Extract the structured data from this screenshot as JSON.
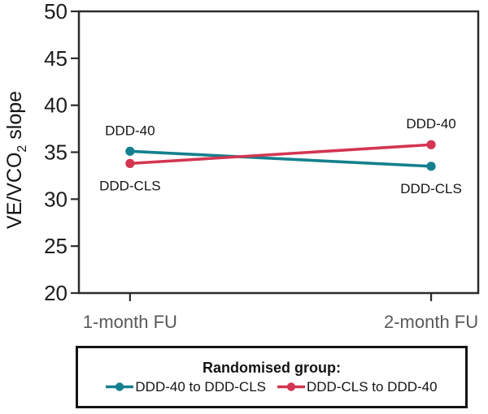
{
  "chart_data": {
    "type": "line",
    "title": "",
    "categories": [
      "1-month FU",
      "2-month FU"
    ],
    "series": [
      {
        "name": "DDD-40 to DDD-CLS",
        "color": "#15808d",
        "values": [
          35.1,
          33.5
        ]
      },
      {
        "name": "DDD-CLS to DDD-40",
        "color": "#d43551",
        "values": [
          33.8,
          35.8
        ]
      }
    ],
    "ylabel": {
      "pre": "VE/VCO",
      "sub": "2",
      "post": " slope"
    },
    "xlabel": "",
    "ylim": [
      20,
      50
    ],
    "yticks": [
      20,
      25,
      30,
      35,
      40,
      45,
      50
    ],
    "grid": false,
    "legend_position": "bottom",
    "point_labels": [
      {
        "category_index": 0,
        "value": 35.1,
        "text": "DDD-40",
        "placement": "above"
      },
      {
        "category_index": 0,
        "value": 33.8,
        "text": "DDD-CLS",
        "placement": "below"
      },
      {
        "category_index": 1,
        "value": 35.8,
        "text": "DDD-40",
        "placement": "above"
      },
      {
        "category_index": 1,
        "value": 33.5,
        "text": "DDD-CLS",
        "placement": "below"
      }
    ]
  },
  "legend": {
    "title": "Randomised group:",
    "items": [
      {
        "label": "DDD-40 to DDD-CLS",
        "color": "#15808d"
      },
      {
        "label": "DDD-CLS to DDD-40",
        "color": "#d43551"
      }
    ]
  },
  "colors": {
    "background": "#ffffff",
    "axis": "#2b2b2b",
    "tick_label": "#1c1c1c",
    "category_label": "#595959",
    "point_label": "#141414",
    "axis_title": "#141414",
    "legend_border": "#141414"
  }
}
